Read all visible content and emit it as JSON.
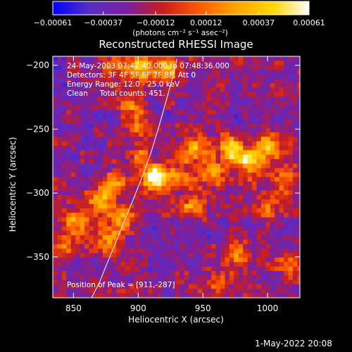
{
  "chart_data": {
    "type": "heatmap",
    "title": "Reconstructed RHESSI Image",
    "xlabel": "Heliocentric X (arcsec)",
    "ylabel": "Heliocentric Y (arcsec)",
    "xlim": [
      834,
      1025
    ],
    "ylim": [
      -382,
      -193
    ],
    "x_ticks": [
      850,
      900,
      950,
      1000
    ],
    "x_tick_labels": [
      "850",
      "900",
      "950",
      "1000"
    ],
    "y_ticks": [
      -200,
      -250,
      -300,
      -350
    ],
    "y_tick_labels": [
      "−200",
      "−250",
      "−300",
      "−350"
    ],
    "colorbar": {
      "min": -0.00061,
      "max": 0.00061,
      "ticks": [
        -0.00061,
        -0.00037,
        -0.00012,
        0.00012,
        0.00037,
        0.00061
      ],
      "tick_labels": [
        "−0.00061",
        "−0.00037",
        "−0.00012",
        "0.00012",
        "0.00037",
        "0.00061"
      ],
      "units": "(photons cm⁻² s⁻¹ asec⁻²)",
      "colormap": [
        "#0000ff",
        "#5a2ec4",
        "#7b1fa2",
        "#c81e1e",
        "#ff5a00",
        "#ffa500",
        "#ffd700",
        "#ffffff"
      ]
    },
    "annotations": [
      "24-May-2003 07:47:40.000 to 07:48:36.000",
      "Detectors: 3F 4F 5F 6F 7F 8F, Att 0",
      "Energy Range: 12.0 - 25.0 keV",
      "Clean     Total counts: 451."
    ],
    "peak_label": "Position of Peak = [911,-287]",
    "peak": [
      911,
      -287
    ],
    "sources": [
      {
        "x": 893,
        "y": -232,
        "amp": 0.35
      },
      {
        "x": 896,
        "y": -248,
        "amp": 0.3
      },
      {
        "x": 900,
        "y": -268,
        "amp": 0.35
      },
      {
        "x": 911,
        "y": -287,
        "amp": 0.95
      },
      {
        "x": 930,
        "y": -285,
        "amp": 0.5
      },
      {
        "x": 942,
        "y": -265,
        "amp": 0.55
      },
      {
        "x": 955,
        "y": -283,
        "amp": 0.55
      },
      {
        "x": 940,
        "y": -308,
        "amp": 0.5
      },
      {
        "x": 970,
        "y": -265,
        "amp": 0.75
      },
      {
        "x": 985,
        "y": -275,
        "amp": 0.7
      },
      {
        "x": 1000,
        "y": -262,
        "amp": 0.65
      },
      {
        "x": 1010,
        "y": -290,
        "amp": 0.45
      },
      {
        "x": 880,
        "y": -290,
        "amp": 0.6
      },
      {
        "x": 870,
        "y": -305,
        "amp": 0.5
      },
      {
        "x": 885,
        "y": -320,
        "amp": 0.55
      },
      {
        "x": 875,
        "y": -335,
        "amp": 0.45
      },
      {
        "x": 850,
        "y": -320,
        "amp": 0.6
      },
      {
        "x": 840,
        "y": -340,
        "amp": 0.4
      },
      {
        "x": 900,
        "y": -200,
        "amp": 0.6
      },
      {
        "x": 920,
        "y": -200,
        "amp": 0.65
      },
      {
        "x": 880,
        "y": -200,
        "amp": 0.4
      },
      {
        "x": 975,
        "y": -345,
        "amp": 0.55
      },
      {
        "x": 960,
        "y": -368,
        "amp": 0.35
      },
      {
        "x": 1015,
        "y": -355,
        "amp": 0.35
      },
      {
        "x": 1000,
        "y": -310,
        "amp": 0.3
      }
    ],
    "limb_arc": [
      [
        864,
        -382
      ],
      [
        870,
        -370
      ],
      [
        876,
        -355
      ],
      [
        883,
        -338
      ],
      [
        890,
        -320
      ],
      [
        897,
        -303
      ],
      [
        904,
        -285
      ],
      [
        910,
        -268
      ],
      [
        916,
        -248
      ],
      [
        921,
        -230
      ],
      [
        926,
        -212
      ],
      [
        930,
        -195
      ]
    ]
  },
  "footer": {
    "timestamp": "1-May-2022 20:08"
  }
}
